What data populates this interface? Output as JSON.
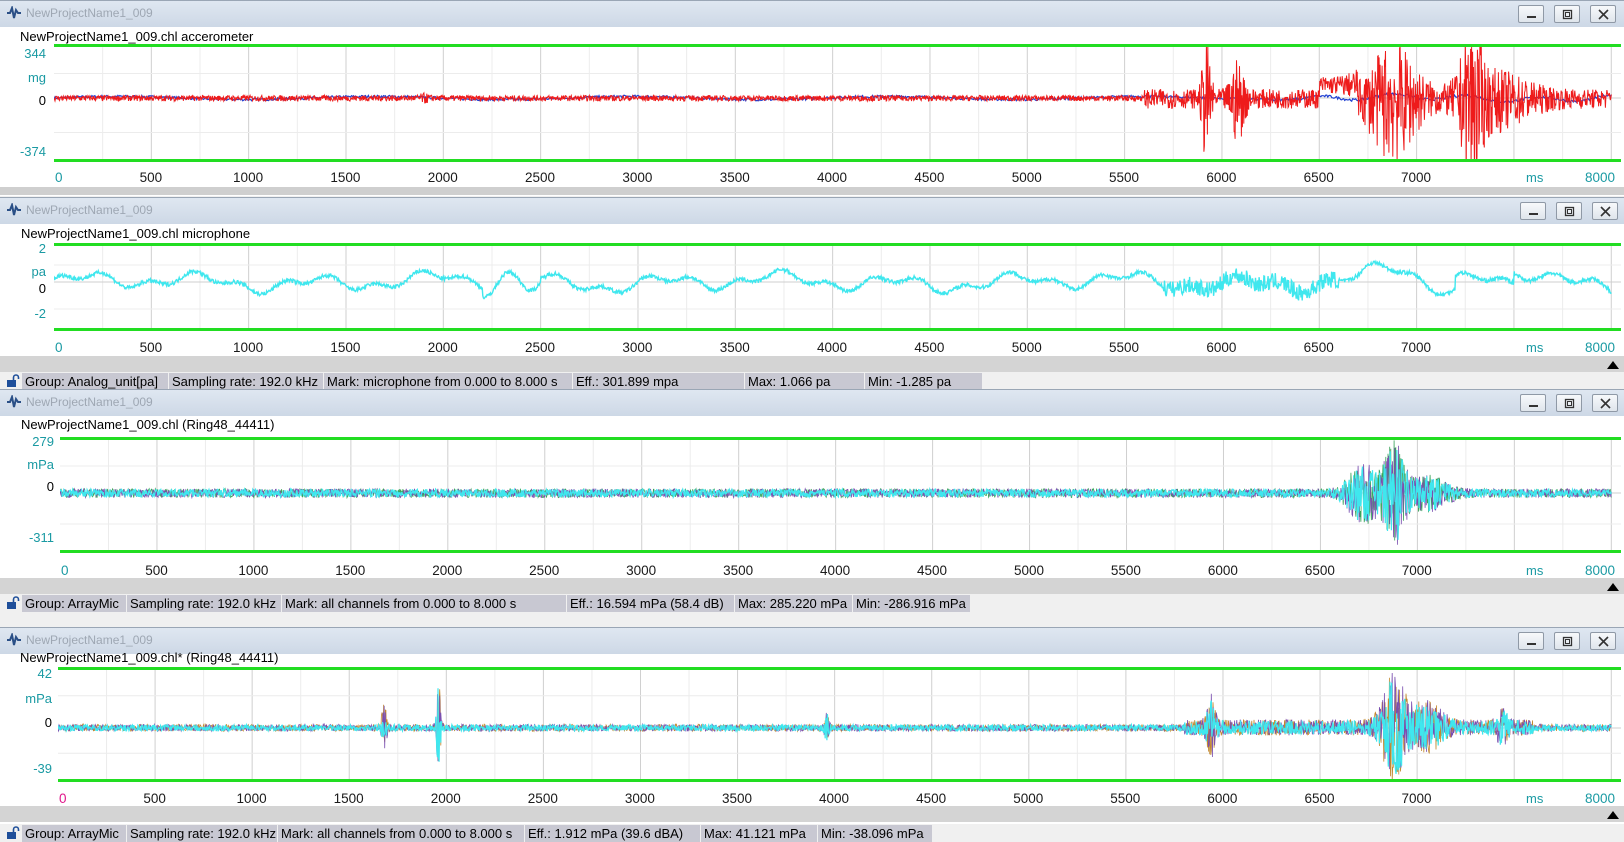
{
  "windows": [
    {
      "title": "NewProjectName1_009",
      "subtitle": "NewProjectName1_009.chl accerometer",
      "y_unit": "mg",
      "y_ticks": [
        "344",
        "0",
        "-374"
      ],
      "y_range": [
        -374,
        344
      ],
      "x_unit": "ms",
      "x_ticks": [
        "0",
        "500",
        "1000",
        "1500",
        "2000",
        "2500",
        "3000",
        "3500",
        "4000",
        "4500",
        "5000",
        "5500",
        "6000",
        "6500",
        "7000",
        "8000"
      ],
      "x_zero_color": "#1a9aa3",
      "series_colors": [
        "#1f3fd1",
        "#ee1b1b"
      ],
      "status": null
    },
    {
      "title": "NewProjectName1_009",
      "subtitle": "NewProjectName1_009.chl microphone",
      "y_unit": "pa",
      "y_ticks": [
        "2",
        "0",
        "-2"
      ],
      "y_range": [
        -2,
        2
      ],
      "x_unit": "ms",
      "x_ticks": [
        "0",
        "500",
        "1000",
        "1500",
        "2000",
        "2500",
        "3000",
        "3500",
        "4000",
        "4500",
        "5000",
        "5500",
        "6000",
        "6500",
        "7000",
        "8000"
      ],
      "x_zero_color": "#1a9aa3",
      "series_colors": [
        "#3fe7ee"
      ],
      "status": [
        "Group: Analog_unit[pa]",
        "Sampling rate: 192.0 kHz",
        "Mark: microphone from 0.000 to 8.000 s",
        "Eff.: 301.899 mpa",
        "Max: 1.066 pa",
        "Min: -1.285 pa"
      ]
    },
    {
      "title": "NewProjectName1_009",
      "subtitle": "NewProjectName1_009.chl (Ring48_44411)",
      "y_unit": "mPa",
      "y_ticks": [
        "279",
        "0",
        "-311"
      ],
      "y_range": [
        -311,
        279
      ],
      "x_unit": "ms",
      "x_ticks": [
        "0",
        "500",
        "1000",
        "1500",
        "2000",
        "2500",
        "3000",
        "3500",
        "4000",
        "4500",
        "5000",
        "5500",
        "6000",
        "6500",
        "7000",
        "8000"
      ],
      "x_zero_color": "#1a9aa3",
      "series_colors": [
        "#3fe7ee",
        "#7a4fb0",
        "#3aa35a"
      ],
      "status": [
        "Group: ArrayMic",
        "Sampling rate: 192.0 kHz",
        "Mark: all channels from 0.000 to 8.000 s",
        "Eff.: 16.594 mPa (58.4 dB)",
        "Max: 285.220 mPa",
        "Min: -286.916 mPa"
      ]
    },
    {
      "title": "NewProjectName1_009",
      "subtitle": "NewProjectName1_009.chl* (Ring48_44411)",
      "y_unit": "mPa",
      "y_ticks": [
        "42",
        "0",
        "-39"
      ],
      "y_range": [
        -39,
        42
      ],
      "x_unit": "ms",
      "x_ticks": [
        "0",
        "500",
        "1000",
        "1500",
        "2000",
        "2500",
        "3000",
        "3500",
        "4000",
        "4500",
        "5000",
        "5500",
        "6000",
        "6500",
        "7000",
        "8000"
      ],
      "x_zero_color": "#e0168a",
      "series_colors": [
        "#3fe7ee",
        "#7a4fb0",
        "#c2882e"
      ],
      "status": [
        "Group: ArrayMic",
        "Sampling rate: 192.0 kHz",
        "Mark: all channels from 0.000 to 8.000 s",
        "Eff.: 1.912 mPa (39.6 dBA)",
        "Max: 41.121 mPa",
        "Min: -38.096 mPa"
      ]
    }
  ],
  "border_color": "#22dd22",
  "icons": {
    "app": "waveform-app-icon",
    "minimize": "minimize-icon",
    "maximize": "maximize-icon",
    "close": "close-icon",
    "lock": "lock-icon",
    "scroll": "scroll-up-arrow-icon"
  }
}
